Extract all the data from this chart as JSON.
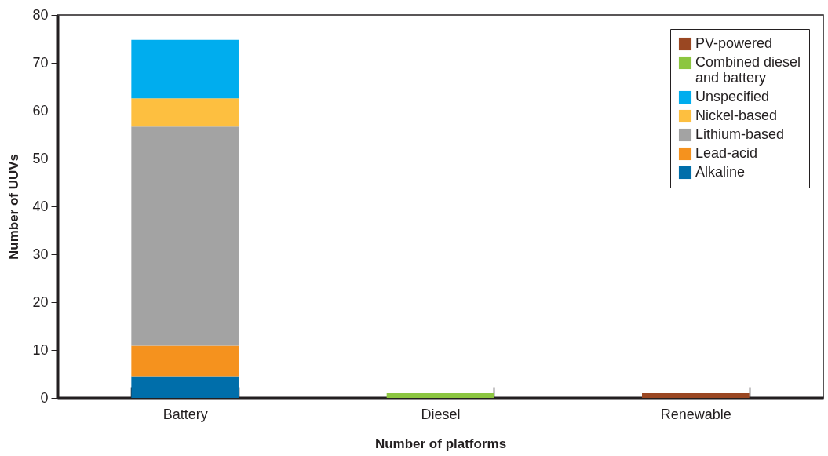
{
  "chart_data": {
    "type": "bar",
    "stacked": true,
    "xlabel": "Number of platforms",
    "ylabel": "Number of UUVs",
    "categories": [
      "Battery",
      "Diesel",
      "Renewable"
    ],
    "series": [
      {
        "name": "Alkaline",
        "color": "#006eaa",
        "values": [
          4.5,
          null,
          null
        ]
      },
      {
        "name": "Lead-acid",
        "color": "#f5921e",
        "values": [
          6.4,
          null,
          null
        ]
      },
      {
        "name": "Lithium-based",
        "color": "#a3a3a3",
        "values": [
          45.8,
          null,
          null
        ]
      },
      {
        "name": "Nickel-based",
        "color": "#fdbf40",
        "values": [
          5.9,
          null,
          null
        ]
      },
      {
        "name": "Unspecified",
        "color": "#00adee",
        "values": [
          12.2,
          null,
          null
        ]
      },
      {
        "name": "Combined diesel and battery",
        "color": "#8cc640",
        "values": [
          null,
          1,
          null
        ]
      },
      {
        "name": "PV-powered",
        "color": "#9a4722",
        "values": [
          null,
          null,
          1
        ]
      }
    ],
    "ylim": [
      0,
      80
    ],
    "yticks": [
      0,
      10,
      20,
      30,
      40,
      50,
      60,
      70,
      80
    ],
    "grid": false,
    "legend": "top right"
  }
}
